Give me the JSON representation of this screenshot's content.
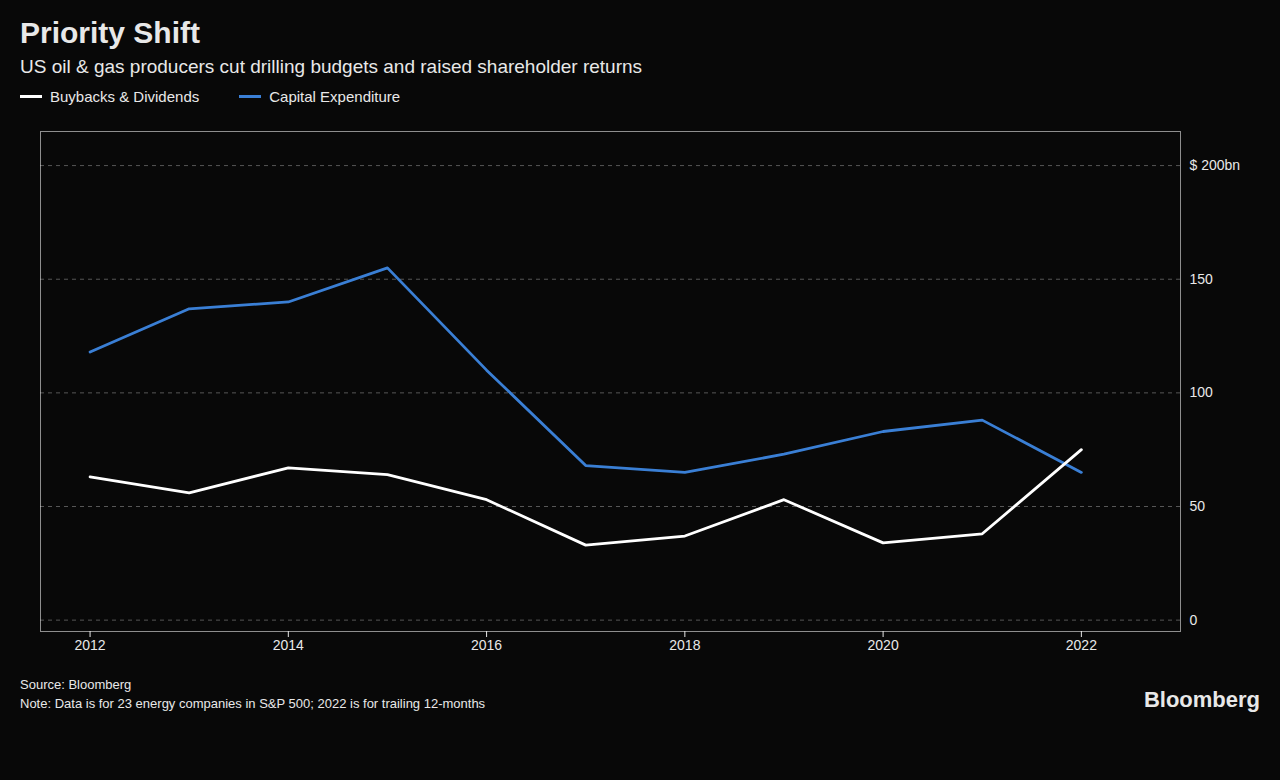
{
  "chart_data": {
    "type": "line",
    "title": "Priority Shift",
    "subtitle": "US oil & gas producers cut drilling budgets and raised shareholder returns",
    "annotations": [
      "Source: Bloomberg",
      "Note: Data is for 23 energy companies in S&P 500; 2022 is for trailing 12-months",
      "Bloomberg"
    ],
    "x": [
      2012,
      2013,
      2014,
      2015,
      2016,
      2017,
      2018,
      2019,
      2020,
      2021,
      2022
    ],
    "series": [
      {
        "name": "Capital Expenditure",
        "color": "#3a7fd5",
        "values": [
          118,
          137,
          140,
          155,
          110,
          68,
          65,
          73,
          83,
          88,
          65
        ]
      },
      {
        "name": "Buybacks & Dividends",
        "color": "#ffffff",
        "values": [
          63,
          56,
          67,
          64,
          53,
          33,
          37,
          53,
          34,
          38,
          75
        ]
      }
    ],
    "xlim": [
      2011.5,
      2023.0
    ],
    "xticks": [
      2012,
      2014,
      2016,
      2018,
      2020,
      2022
    ],
    "ylim": [
      -5,
      215
    ],
    "yticks": [
      0,
      50,
      100,
      150,
      {
        "value": 200,
        "label": "$ 200bn"
      }
    ],
    "grid": "y",
    "legend": "top-left"
  }
}
